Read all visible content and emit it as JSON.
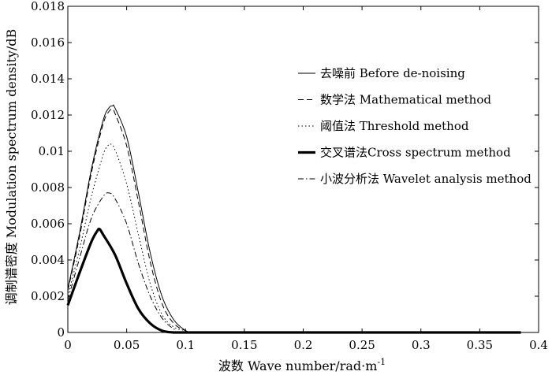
{
  "chart_data": {
    "type": "line",
    "xlabel": "波数 Wave number/rad·m",
    "xlabel_sup": "-1",
    "ylabel": "调制谱密度 Modulation spectrum density/dB",
    "xlim": [
      0,
      0.4
    ],
    "ylim": [
      0,
      0.018
    ],
    "xticks": [
      0,
      0.05,
      0.1,
      0.15,
      0.2,
      0.25,
      0.3,
      0.35,
      0.4
    ],
    "xtick_labels": [
      "0",
      "0.05",
      "0.1",
      "0.15",
      "0.2",
      "0.25",
      "0.3",
      "0.35",
      "0.4"
    ],
    "yticks": [
      0,
      0.002,
      0.004,
      0.006,
      0.008,
      0.01,
      0.012,
      0.014,
      0.016,
      0.018
    ],
    "ytick_labels": [
      "0",
      "0.002",
      "0.004",
      "0.006",
      "0.008",
      "0.01",
      "0.012",
      "0.014",
      "0.016",
      "0.018"
    ],
    "grid": false,
    "legend_position": "right",
    "series": [
      {
        "name": "去噪前 Before de-noising",
        "style": "solid",
        "width": 1,
        "color": "#000000",
        "x": [
          0,
          0.01,
          0.02,
          0.03,
          0.035,
          0.038,
          0.04,
          0.05,
          0.06,
          0.07,
          0.08,
          0.09,
          0.1,
          0.105,
          0.11,
          0.2,
          0.3,
          0.385
        ],
        "y": [
          0.0024,
          0.0055,
          0.009,
          0.0117,
          0.0124,
          0.0125,
          0.0124,
          0.0108,
          0.0077,
          0.0044,
          0.002,
          0.0007,
          0.0001,
          0,
          0,
          0,
          0,
          0
        ]
      },
      {
        "name": "数学法 Mathematical method",
        "style": "dash",
        "width": 1,
        "color": "#000000",
        "x": [
          0,
          0.01,
          0.02,
          0.03,
          0.035,
          0.038,
          0.04,
          0.05,
          0.06,
          0.07,
          0.08,
          0.09,
          0.1,
          0.105,
          0.11,
          0.2,
          0.3,
          0.385
        ],
        "y": [
          0.0023,
          0.0053,
          0.0088,
          0.0115,
          0.0122,
          0.0123,
          0.0121,
          0.0103,
          0.0072,
          0.0039,
          0.0016,
          0.0005,
          0.0001,
          0,
          0,
          0,
          0,
          0
        ]
      },
      {
        "name": "阈值法 Threshold method",
        "style": "dot",
        "width": 1,
        "color": "#000000",
        "x": [
          0,
          0.01,
          0.02,
          0.03,
          0.034,
          0.036,
          0.04,
          0.05,
          0.06,
          0.07,
          0.08,
          0.09,
          0.1,
          0.105,
          0.2,
          0.3,
          0.385
        ],
        "y": [
          0.002,
          0.0046,
          0.0075,
          0.0098,
          0.0103,
          0.0104,
          0.0101,
          0.0082,
          0.0054,
          0.0027,
          0.001,
          0.0003,
          0.0001,
          0,
          0,
          0,
          0
        ]
      },
      {
        "name": "交叉谱法Cross spectrum method",
        "style": "solid",
        "width": 3.2,
        "color": "#000000",
        "x": [
          0,
          0.01,
          0.02,
          0.025,
          0.027,
          0.03,
          0.04,
          0.05,
          0.06,
          0.07,
          0.08,
          0.09,
          0.1,
          0.2,
          0.3,
          0.385
        ],
        "y": [
          0.0015,
          0.0033,
          0.005,
          0.0056,
          0.0057,
          0.0054,
          0.0043,
          0.0027,
          0.0013,
          0.0005,
          0.0001,
          0,
          0,
          0,
          0,
          0
        ]
      },
      {
        "name": "小波分析法 Wavelet analysis method",
        "style": "dashdot",
        "width": 1,
        "color": "#000000",
        "x": [
          0,
          0.01,
          0.02,
          0.03,
          0.035,
          0.04,
          0.05,
          0.06,
          0.07,
          0.08,
          0.09,
          0.1,
          0.2,
          0.3,
          0.385
        ],
        "y": [
          0.0018,
          0.0041,
          0.0063,
          0.0075,
          0.0077,
          0.0074,
          0.006,
          0.0038,
          0.002,
          0.0008,
          0.0002,
          0,
          0,
          0,
          0
        ]
      }
    ]
  }
}
